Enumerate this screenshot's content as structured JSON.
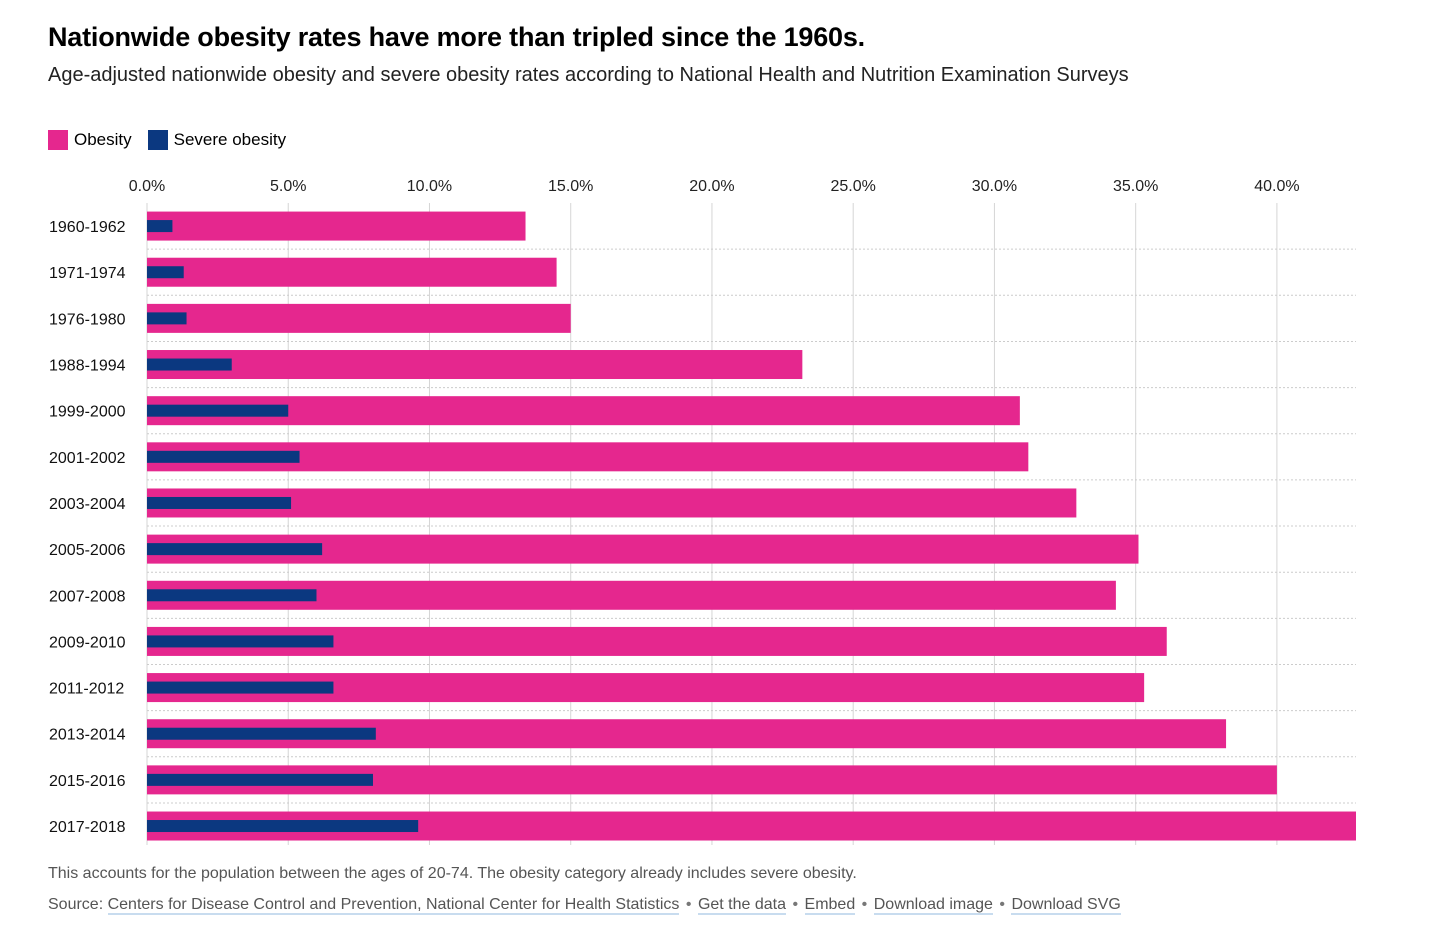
{
  "header": {
    "title": "Nationwide obesity rates have more than tripled since the 1960s.",
    "subtitle": "Age-adjusted nationwide obesity and severe obesity rates according to National Health and Nutrition Examination Surveys"
  },
  "colors": {
    "obesity": "#e5278e",
    "severe": "#0b3880",
    "grid": "#d6d6d6",
    "row_divider": "#cccccc"
  },
  "chart_data": {
    "type": "bar",
    "orientation": "horizontal",
    "title": "Nationwide obesity rates have more than tripled since the 1960s.",
    "categories": [
      "1960-1962",
      "1971-1974",
      "1976-1980",
      "1988-1994",
      "1999-2000",
      "2001-2002",
      "2003-2004",
      "2005-2006",
      "2007-2008",
      "2009-2010",
      "2011-2012",
      "2013-2014",
      "2015-2016",
      "2017-2018"
    ],
    "series": [
      {
        "name": "Obesity",
        "values": [
          13.4,
          14.5,
          15.0,
          23.2,
          30.9,
          31.2,
          32.9,
          35.1,
          34.3,
          36.1,
          35.3,
          38.2,
          40.0,
          42.8
        ]
      },
      {
        "name": "Severe obesity",
        "values": [
          0.9,
          1.3,
          1.4,
          3.0,
          5.0,
          5.4,
          5.1,
          6.2,
          6.0,
          6.6,
          6.6,
          8.1,
          8.0,
          9.6
        ]
      }
    ],
    "xticks": [
      "0.0%",
      "5.0%",
      "10.0%",
      "15.0%",
      "20.0%",
      "25.0%",
      "30.0%",
      "35.0%",
      "40.0%"
    ],
    "xlim": [
      0,
      42.8
    ],
    "legend": "top-left",
    "grid": true
  },
  "footer": {
    "note": "This accounts for the population between the ages of 20-74. The obesity category already includes severe obesity.",
    "source_label": "Source:",
    "source_link": "Centers for Disease Control and Prevention, National Center for Health Statistics",
    "links": [
      "Get the data",
      "Embed",
      "Download image",
      "Download SVG"
    ],
    "separator": "•"
  }
}
